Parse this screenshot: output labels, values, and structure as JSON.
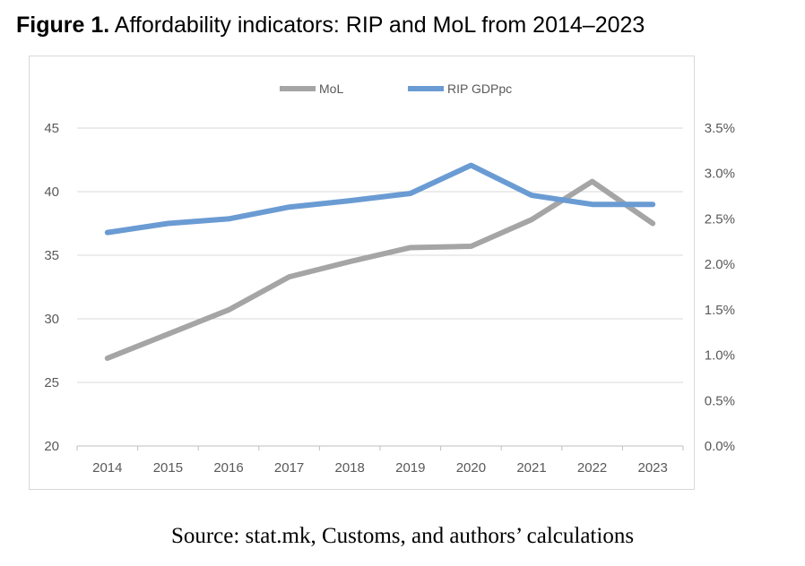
{
  "figure_label": "Figure 1.",
  "figure_title": "Affordability indicators: RIP and MoL from 2014–2023",
  "source": "Source: stat.mk, Customs, and authors’ calculations",
  "chart_data": {
    "type": "line",
    "categories": [
      "2014",
      "2015",
      "2016",
      "2017",
      "2018",
      "2019",
      "2020",
      "2021",
      "2022",
      "2023"
    ],
    "y_left": {
      "range": [
        20,
        45
      ],
      "ticks": [
        "20",
        "25",
        "30",
        "35",
        "40",
        "45"
      ]
    },
    "y_right": {
      "range": [
        0,
        3.5
      ],
      "ticks": [
        "0.0%",
        "0.5%",
        "1.0%",
        "1.5%",
        "2.0%",
        "2.5%",
        "3.0%",
        "3.5%"
      ]
    },
    "grid": true,
    "legend": "top",
    "series": [
      {
        "name": "MoL",
        "axis": "left",
        "color": "#a5a5a5",
        "values": [
          26.9,
          28.8,
          30.7,
          33.3,
          34.5,
          35.6,
          35.7,
          37.8,
          40.8,
          37.5
        ]
      },
      {
        "name": "RIP GDPpc",
        "axis": "right",
        "color": "#6a9bd3",
        "values": [
          2.35,
          2.45,
          2.5,
          2.63,
          2.7,
          2.78,
          3.09,
          2.76,
          2.66,
          2.66
        ]
      }
    ]
  }
}
